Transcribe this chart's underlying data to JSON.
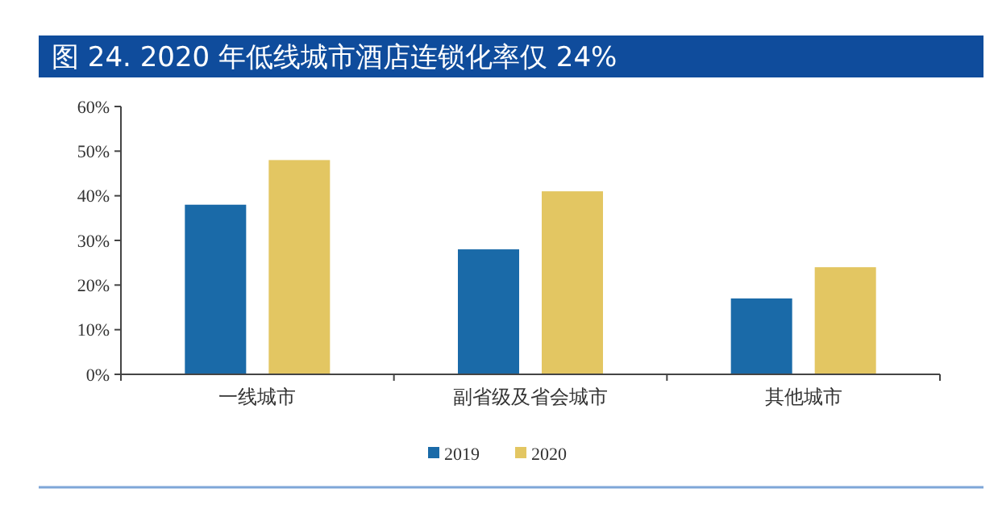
{
  "chart_data": {
    "type": "bar",
    "title": "图 24. 2020 年低线城市酒店连锁化率仅 24%",
    "categories": [
      "一线城市",
      "副省级及省会城市",
      "其他城市"
    ],
    "series": [
      {
        "name": "2019",
        "color": "#1a6aa8",
        "values": [
          38,
          28,
          17
        ]
      },
      {
        "name": "2020",
        "color": "#e3c662",
        "values": [
          48,
          41,
          24
        ]
      }
    ],
    "ylim": [
      0,
      60
    ],
    "yticks": [
      {
        "value": 0,
        "label": "0%"
      },
      {
        "value": 10,
        "label": "10%"
      },
      {
        "value": 20,
        "label": "20%"
      },
      {
        "value": 30,
        "label": "30%"
      },
      {
        "value": 40,
        "label": "40%"
      },
      {
        "value": 50,
        "label": "50%"
      },
      {
        "value": 60,
        "label": "60%"
      }
    ],
    "grid": false,
    "legend": "bottom"
  }
}
